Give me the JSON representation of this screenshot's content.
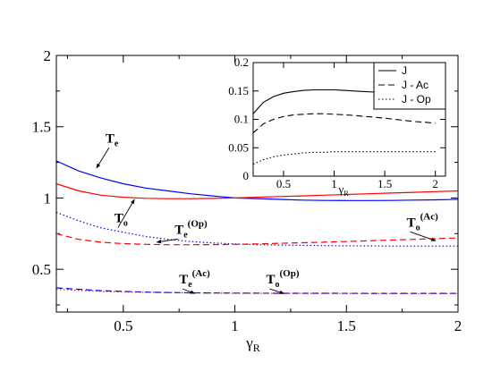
{
  "chart_data": [
    {
      "type": "line",
      "xlabel": "γR",
      "xlim": [
        0.2,
        2.0
      ],
      "ylim": [
        0.2,
        2.0
      ],
      "xticks": [
        0.5,
        1,
        1.5,
        2
      ],
      "yticks": [
        0.5,
        1,
        1.5,
        2
      ],
      "xtick_labels": [
        "0.5",
        "1",
        "1.5",
        "2"
      ],
      "ytick_labels": [
        "0.5",
        "1",
        "1.5",
        "2"
      ],
      "series": [
        {
          "name": "Te",
          "color": "#0000ff",
          "style": "solid",
          "x": [
            0.2,
            0.3,
            0.4,
            0.5,
            0.6,
            0.7,
            0.8,
            0.9,
            1.0,
            1.1,
            1.2,
            1.3,
            1.4,
            1.5,
            1.6,
            1.7,
            1.8,
            1.9,
            2.0
          ],
          "y": [
            1.26,
            1.19,
            1.14,
            1.1,
            1.07,
            1.05,
            1.03,
            1.015,
            1.0,
            0.995,
            0.99,
            0.985,
            0.983,
            0.982,
            0.982,
            0.983,
            0.985,
            0.987,
            0.99
          ]
        },
        {
          "name": "To",
          "color": "#ff0000",
          "style": "solid",
          "x": [
            0.2,
            0.3,
            0.4,
            0.5,
            0.6,
            0.7,
            0.8,
            0.9,
            1.0,
            1.1,
            1.2,
            1.3,
            1.4,
            1.5,
            1.6,
            1.7,
            1.8,
            1.9,
            2.0
          ],
          "y": [
            1.1,
            1.05,
            1.02,
            1.005,
            0.998,
            0.995,
            0.995,
            0.997,
            1.0,
            1.005,
            1.01,
            1.015,
            1.02,
            1.025,
            1.03,
            1.035,
            1.04,
            1.045,
            1.05
          ]
        },
        {
          "name": "Te(Op)",
          "color": "#0000ff",
          "style": "dotted",
          "x": [
            0.2,
            0.3,
            0.4,
            0.5,
            0.6,
            0.7,
            0.8,
            0.9,
            1.0,
            1.1,
            1.2,
            1.3,
            1.4,
            1.5,
            1.6,
            1.7,
            1.8,
            1.9,
            2.0
          ],
          "y": [
            0.9,
            0.84,
            0.79,
            0.76,
            0.73,
            0.71,
            0.695,
            0.685,
            0.678,
            0.673,
            0.67,
            0.668,
            0.666,
            0.665,
            0.664,
            0.663,
            0.663,
            0.663,
            0.663
          ]
        },
        {
          "name": "To(Ac)",
          "color": "#ff0000",
          "style": "dashed",
          "x": [
            0.2,
            0.3,
            0.4,
            0.5,
            0.6,
            0.7,
            0.8,
            0.9,
            1.0,
            1.1,
            1.2,
            1.3,
            1.4,
            1.5,
            1.6,
            1.7,
            1.8,
            1.9,
            2.0
          ],
          "y": [
            0.75,
            0.71,
            0.69,
            0.68,
            0.675,
            0.672,
            0.672,
            0.673,
            0.675,
            0.678,
            0.682,
            0.686,
            0.69,
            0.695,
            0.7,
            0.705,
            0.71,
            0.715,
            0.72
          ]
        },
        {
          "name": "Te(Ac)",
          "color": "#0000ff",
          "style": "dashed",
          "x": [
            0.2,
            0.4,
            0.6,
            0.8,
            1.0,
            1.2,
            1.4,
            1.6,
            1.8,
            2.0
          ],
          "y": [
            0.37,
            0.35,
            0.34,
            0.335,
            0.333,
            0.332,
            0.332,
            0.331,
            0.331,
            0.331
          ]
        },
        {
          "name": "To(Op)",
          "color": "#ff0000",
          "style": "dotted",
          "x": [
            0.2,
            0.4,
            0.6,
            0.8,
            1.0,
            1.2,
            1.4,
            1.6,
            1.8,
            2.0
          ],
          "y": [
            0.36,
            0.345,
            0.338,
            0.334,
            0.332,
            0.331,
            0.331,
            0.33,
            0.33,
            0.33
          ]
        }
      ],
      "annotations": [
        {
          "base": "T",
          "sub": "e",
          "sup": "",
          "tx": 0.42,
          "ty": 1.39,
          "ax": 0.38,
          "ay": 1.21
        },
        {
          "base": "T",
          "sub": "o",
          "sup": "",
          "tx": 0.46,
          "ty": 0.83,
          "ax": 0.55,
          "ay": 0.99
        },
        {
          "base": "T",
          "sub": "e",
          "sup": "(Op)",
          "tx": 0.73,
          "ty": 0.75,
          "ax": 0.65,
          "ay": 0.69
        },
        {
          "base": "T",
          "sub": "o",
          "sup": "(Ac)",
          "tx": 1.77,
          "ty": 0.8,
          "ax": 1.9,
          "ay": 0.7
        },
        {
          "base": "T",
          "sub": "e",
          "sup": "(Ac)",
          "tx": 0.75,
          "ty": 0.4,
          "ax": 0.82,
          "ay": 0.33
        },
        {
          "base": "T",
          "sub": "o",
          "sup": "(Op)",
          "tx": 1.14,
          "ty": 0.4,
          "ax": 1.22,
          "ay": 0.33
        }
      ]
    },
    {
      "type": "line",
      "xlabel": "γR",
      "xlim": [
        0.2,
        2.1
      ],
      "ylim": [
        0,
        0.2
      ],
      "xticks": [
        0.5,
        1,
        1.5,
        2
      ],
      "yticks": [
        0,
        0.05,
        0.1,
        0.15,
        0.2
      ],
      "xtick_labels": [
        "0.5",
        "1",
        "1.5",
        "2"
      ],
      "ytick_labels": [
        "0",
        "0.05",
        "0.1",
        "0.15",
        "0.2"
      ],
      "legend": "top-right",
      "series": [
        {
          "name": "J",
          "color": "#000000",
          "style": "solid",
          "x": [
            0.2,
            0.3,
            0.4,
            0.5,
            0.6,
            0.7,
            0.8,
            0.9,
            1.0,
            1.1,
            1.2,
            1.3,
            1.4,
            1.5,
            1.6,
            1.7,
            1.8,
            1.9,
            2.0
          ],
          "y": [
            0.11,
            0.13,
            0.14,
            0.146,
            0.149,
            0.151,
            0.152,
            0.152,
            0.152,
            0.151,
            0.15,
            0.149,
            0.148,
            0.147,
            0.146,
            0.145,
            0.144,
            0.143,
            0.142
          ]
        },
        {
          "name": "J - Ac",
          "color": "#000000",
          "style": "dashed",
          "x": [
            0.2,
            0.3,
            0.4,
            0.5,
            0.6,
            0.7,
            0.8,
            0.9,
            1.0,
            1.1,
            1.2,
            1.3,
            1.4,
            1.5,
            1.6,
            1.7,
            1.8,
            1.9,
            2.0
          ],
          "y": [
            0.076,
            0.092,
            0.1,
            0.105,
            0.108,
            0.109,
            0.11,
            0.11,
            0.109,
            0.108,
            0.107,
            0.105,
            0.104,
            0.102,
            0.1,
            0.098,
            0.096,
            0.095,
            0.093
          ]
        },
        {
          "name": "J - Op",
          "color": "#000000",
          "style": "dotted",
          "x": [
            0.2,
            0.3,
            0.4,
            0.5,
            0.6,
            0.7,
            0.8,
            0.9,
            1.0,
            1.1,
            1.2,
            1.3,
            1.4,
            1.5,
            1.6,
            1.7,
            1.8,
            1.9,
            2.0
          ],
          "y": [
            0.021,
            0.029,
            0.034,
            0.037,
            0.039,
            0.041,
            0.042,
            0.042,
            0.043,
            0.043,
            0.043,
            0.043,
            0.043,
            0.043,
            0.043,
            0.043,
            0.043,
            0.043,
            0.043
          ]
        }
      ]
    }
  ]
}
